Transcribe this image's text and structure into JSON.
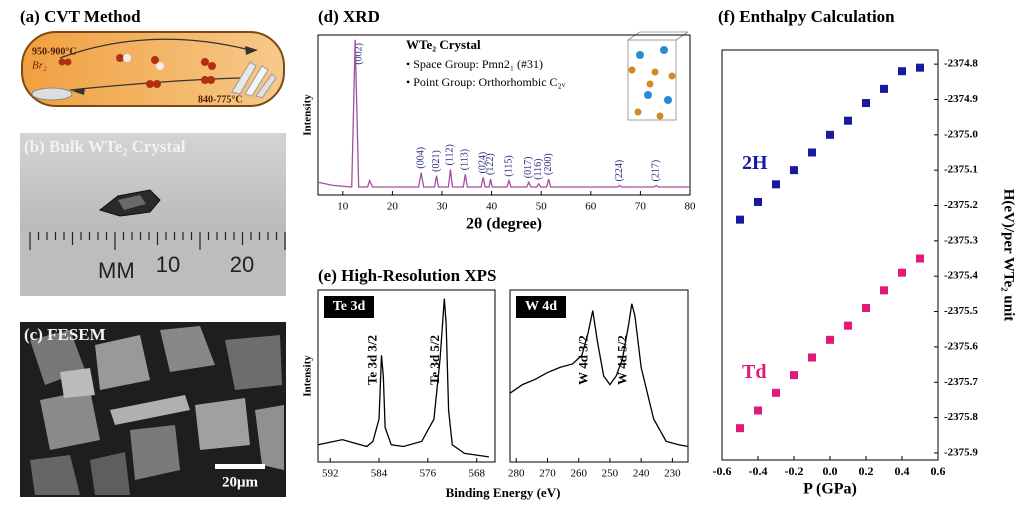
{
  "panels": {
    "a": {
      "title": "(a) CVT Method",
      "hot": "950-900°C",
      "agent": "Br₂",
      "cold": "840-775°C"
    },
    "b": {
      "title": "(b) Bulk WTe₂ Crystal",
      "ruler": [
        "MM",
        "10",
        "20"
      ]
    },
    "c": {
      "title": "(c) FESEM",
      "scale": "20μm"
    }
  },
  "chart_data": [
    {
      "type": "line",
      "title": "(d) XRD",
      "xlabel": "2θ (degree)",
      "ylabel": "Intensity",
      "color": "#a0509f",
      "xlim": [
        5,
        80
      ],
      "xticks": [
        10,
        20,
        30,
        40,
        50,
        60,
        70,
        80
      ],
      "ylim": [
        0,
        100
      ],
      "x": [
        5,
        8,
        11.8,
        12.5,
        13.2,
        15,
        15.4,
        16,
        25.3,
        25.8,
        26.3,
        28.5,
        28.9,
        29.3,
        31.3,
        31.7,
        32.1,
        34.3,
        34.7,
        35.1,
        37.9,
        38.3,
        38.7,
        39.5,
        39.8,
        40.1,
        43.1,
        43.5,
        43.9,
        47.1,
        47.5,
        47.9,
        49.1,
        49.5,
        49.9,
        51.1,
        51.5,
        51.9,
        65.4,
        65.8,
        66.2,
        72.8,
        73.2,
        73.6,
        80
      ],
      "values": [
        8,
        6,
        5,
        97,
        5,
        5,
        9,
        5,
        5,
        14,
        5,
        5,
        12,
        5,
        5,
        16,
        5,
        5,
        13,
        5,
        5,
        11,
        5,
        5,
        10,
        5,
        5,
        9,
        5,
        5,
        8,
        5,
        5,
        7,
        5,
        5,
        10,
        5,
        5,
        6,
        5,
        5,
        6,
        5,
        5
      ],
      "peaks": [
        {
          "text": "(002)",
          "x": 12.5
        },
        {
          "text": "(004)",
          "x": 25.8
        },
        {
          "text": "(021)",
          "x": 28.9
        },
        {
          "text": "(112)",
          "x": 31.7
        },
        {
          "text": "(113)",
          "x": 34.7
        },
        {
          "text": "(024)",
          "x": 38.3
        },
        {
          "text": "(122)",
          "x": 39.8
        },
        {
          "text": "(115)",
          "x": 43.5
        },
        {
          "text": "(017)",
          "x": 47.5
        },
        {
          "text": "(116)",
          "x": 49.5
        },
        {
          "text": "(200)",
          "x": 51.5
        },
        {
          "text": "(224)",
          "x": 65.8
        },
        {
          "text": "(217)",
          "x": 73.2
        }
      ],
      "inset": {
        "title": "WTe₂ Crystal",
        "lines": [
          "• Space Group: Pmn2₁ (#31)",
          "• Point Group: Orthorhombic C₂ᵥ"
        ]
      }
    },
    {
      "type": "line",
      "title": "(e) High-Resolution XPS",
      "label": "Te 3d",
      "xlabel": "Binding Energy (eV)",
      "ylabel": "Intensity",
      "color": "#000000",
      "xlim": [
        594,
        565
      ],
      "xticks": [
        592,
        584,
        576,
        568
      ],
      "ylim": [
        0,
        100
      ],
      "x": [
        594,
        590,
        588,
        586,
        585,
        584,
        583.6,
        583.3,
        583,
        582,
        580,
        577,
        575,
        574,
        573.3,
        573,
        572.6,
        572,
        570,
        568,
        566
      ],
      "values": [
        10,
        13,
        11,
        9,
        12,
        25,
        62,
        50,
        20,
        10,
        9,
        12,
        25,
        60,
        95,
        80,
        30,
        10,
        5,
        4,
        3
      ],
      "annotations": [
        {
          "text": "Te 3d 3/2",
          "x": 583.3
        },
        {
          "text": "Te 3d 5/2",
          "x": 573
        }
      ]
    },
    {
      "type": "line",
      "label": "W 4d",
      "color": "#000000",
      "xlim": [
        282,
        225
      ],
      "xticks": [
        280,
        270,
        260,
        250,
        240,
        230
      ],
      "ylim": [
        0,
        100
      ],
      "x": [
        282,
        278,
        274,
        270,
        266,
        262,
        259,
        257,
        255.5,
        254,
        252,
        250,
        248,
        246,
        244,
        243,
        242,
        240,
        236,
        232,
        228,
        225
      ],
      "values": [
        40,
        45,
        48,
        52,
        55,
        57,
        62,
        75,
        88,
        70,
        50,
        45,
        50,
        60,
        80,
        92,
        85,
        55,
        25,
        12,
        10,
        9
      ],
      "annotations": [
        {
          "text": "W 4d 3/2",
          "x": 255
        },
        {
          "text": "W 4d 5/2",
          "x": 242.5
        }
      ]
    },
    {
      "type": "scatter",
      "title": "(f) Enthalpy Calculation",
      "xlabel": "P (GPa)",
      "ylabel": "H(eV)/per WTe₂ unit",
      "xlim": [
        -0.6,
        0.6
      ],
      "xticks": [
        -0.6,
        -0.4,
        -0.2,
        {
          "value": 0,
          "label": "0.0"
        },
        0.2,
        0.4,
        0.6
      ],
      "ylim": [
        -2375.92,
        -2374.76
      ],
      "yticks": [
        -2375.9,
        -2375.8,
        -2375.7,
        -2375.6,
        -2375.5,
        -2375.4,
        -2375.3,
        -2375.2,
        -2375.1,
        {
          "value": -2375,
          "label": "-2375.0"
        },
        -2374.9,
        -2374.8
      ],
      "x": [
        -0.5,
        -0.4,
        -0.3,
        -0.2,
        -0.1,
        0,
        0.1,
        0.2,
        0.3,
        0.4,
        0.5
      ],
      "series": [
        {
          "name": "2H",
          "color": "#1a1a9e",
          "values": [
            -2375.24,
            -2375.19,
            -2375.14,
            -2375.1,
            -2375.05,
            -2375,
            -2374.96,
            -2374.91,
            -2374.87,
            -2374.82,
            -2374.81
          ]
        },
        {
          "name": "Td",
          "color": "#e0197a",
          "values": [
            -2375.83,
            -2375.78,
            -2375.73,
            -2375.68,
            -2375.63,
            -2375.58,
            -2375.54,
            -2375.49,
            -2375.44,
            -2375.39,
            -2375.35
          ]
        }
      ]
    }
  ]
}
